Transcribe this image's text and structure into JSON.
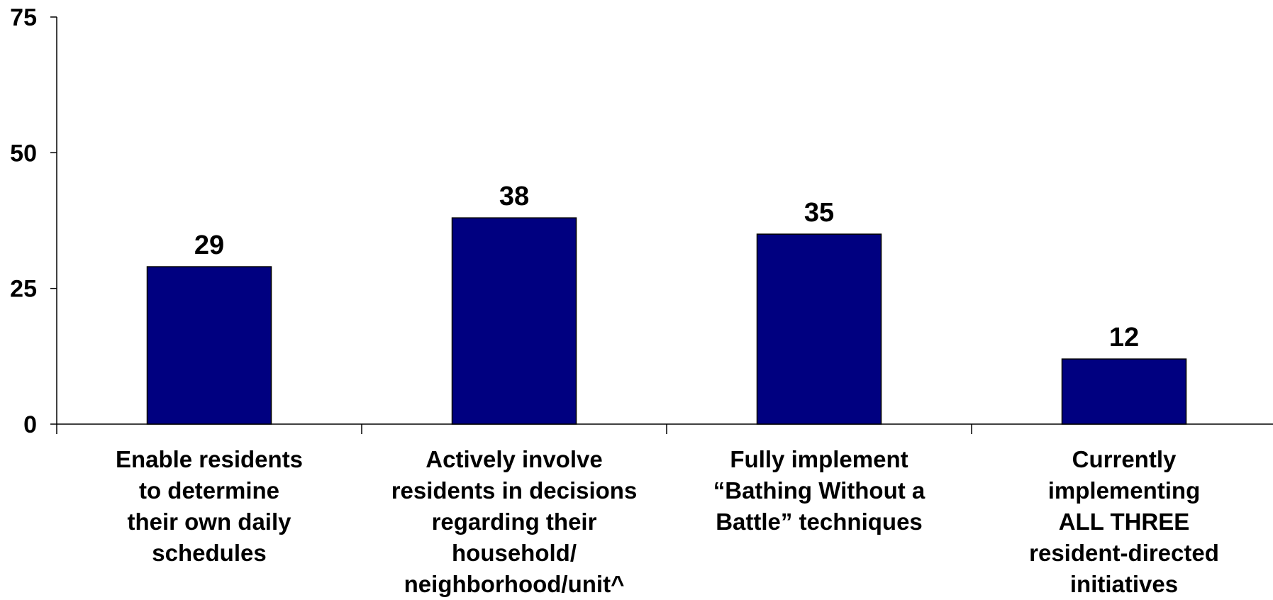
{
  "chart_data": {
    "type": "bar",
    "categories": [
      "Enable residents\nto determine\ntheir own daily\nschedules",
      "Actively involve\nresidents in decisions\nregarding their\nhousehold/\nneighborhood/unit^",
      "Fully implement\n“Bathing Without a\nBattle” techniques",
      "Currently\nimplementing\nALL THREE\nresident-directed\ninitiatives"
    ],
    "values": [
      29,
      38,
      35,
      12
    ],
    "data_labels": [
      "29",
      "38",
      "35",
      "12"
    ],
    "ylim": [
      0,
      75
    ],
    "yticks": [
      0,
      25,
      50,
      75
    ],
    "ytick_labels": [
      "0",
      "25",
      "50",
      "75"
    ],
    "bar_color": "#000080",
    "grid": false,
    "legend": "none"
  }
}
